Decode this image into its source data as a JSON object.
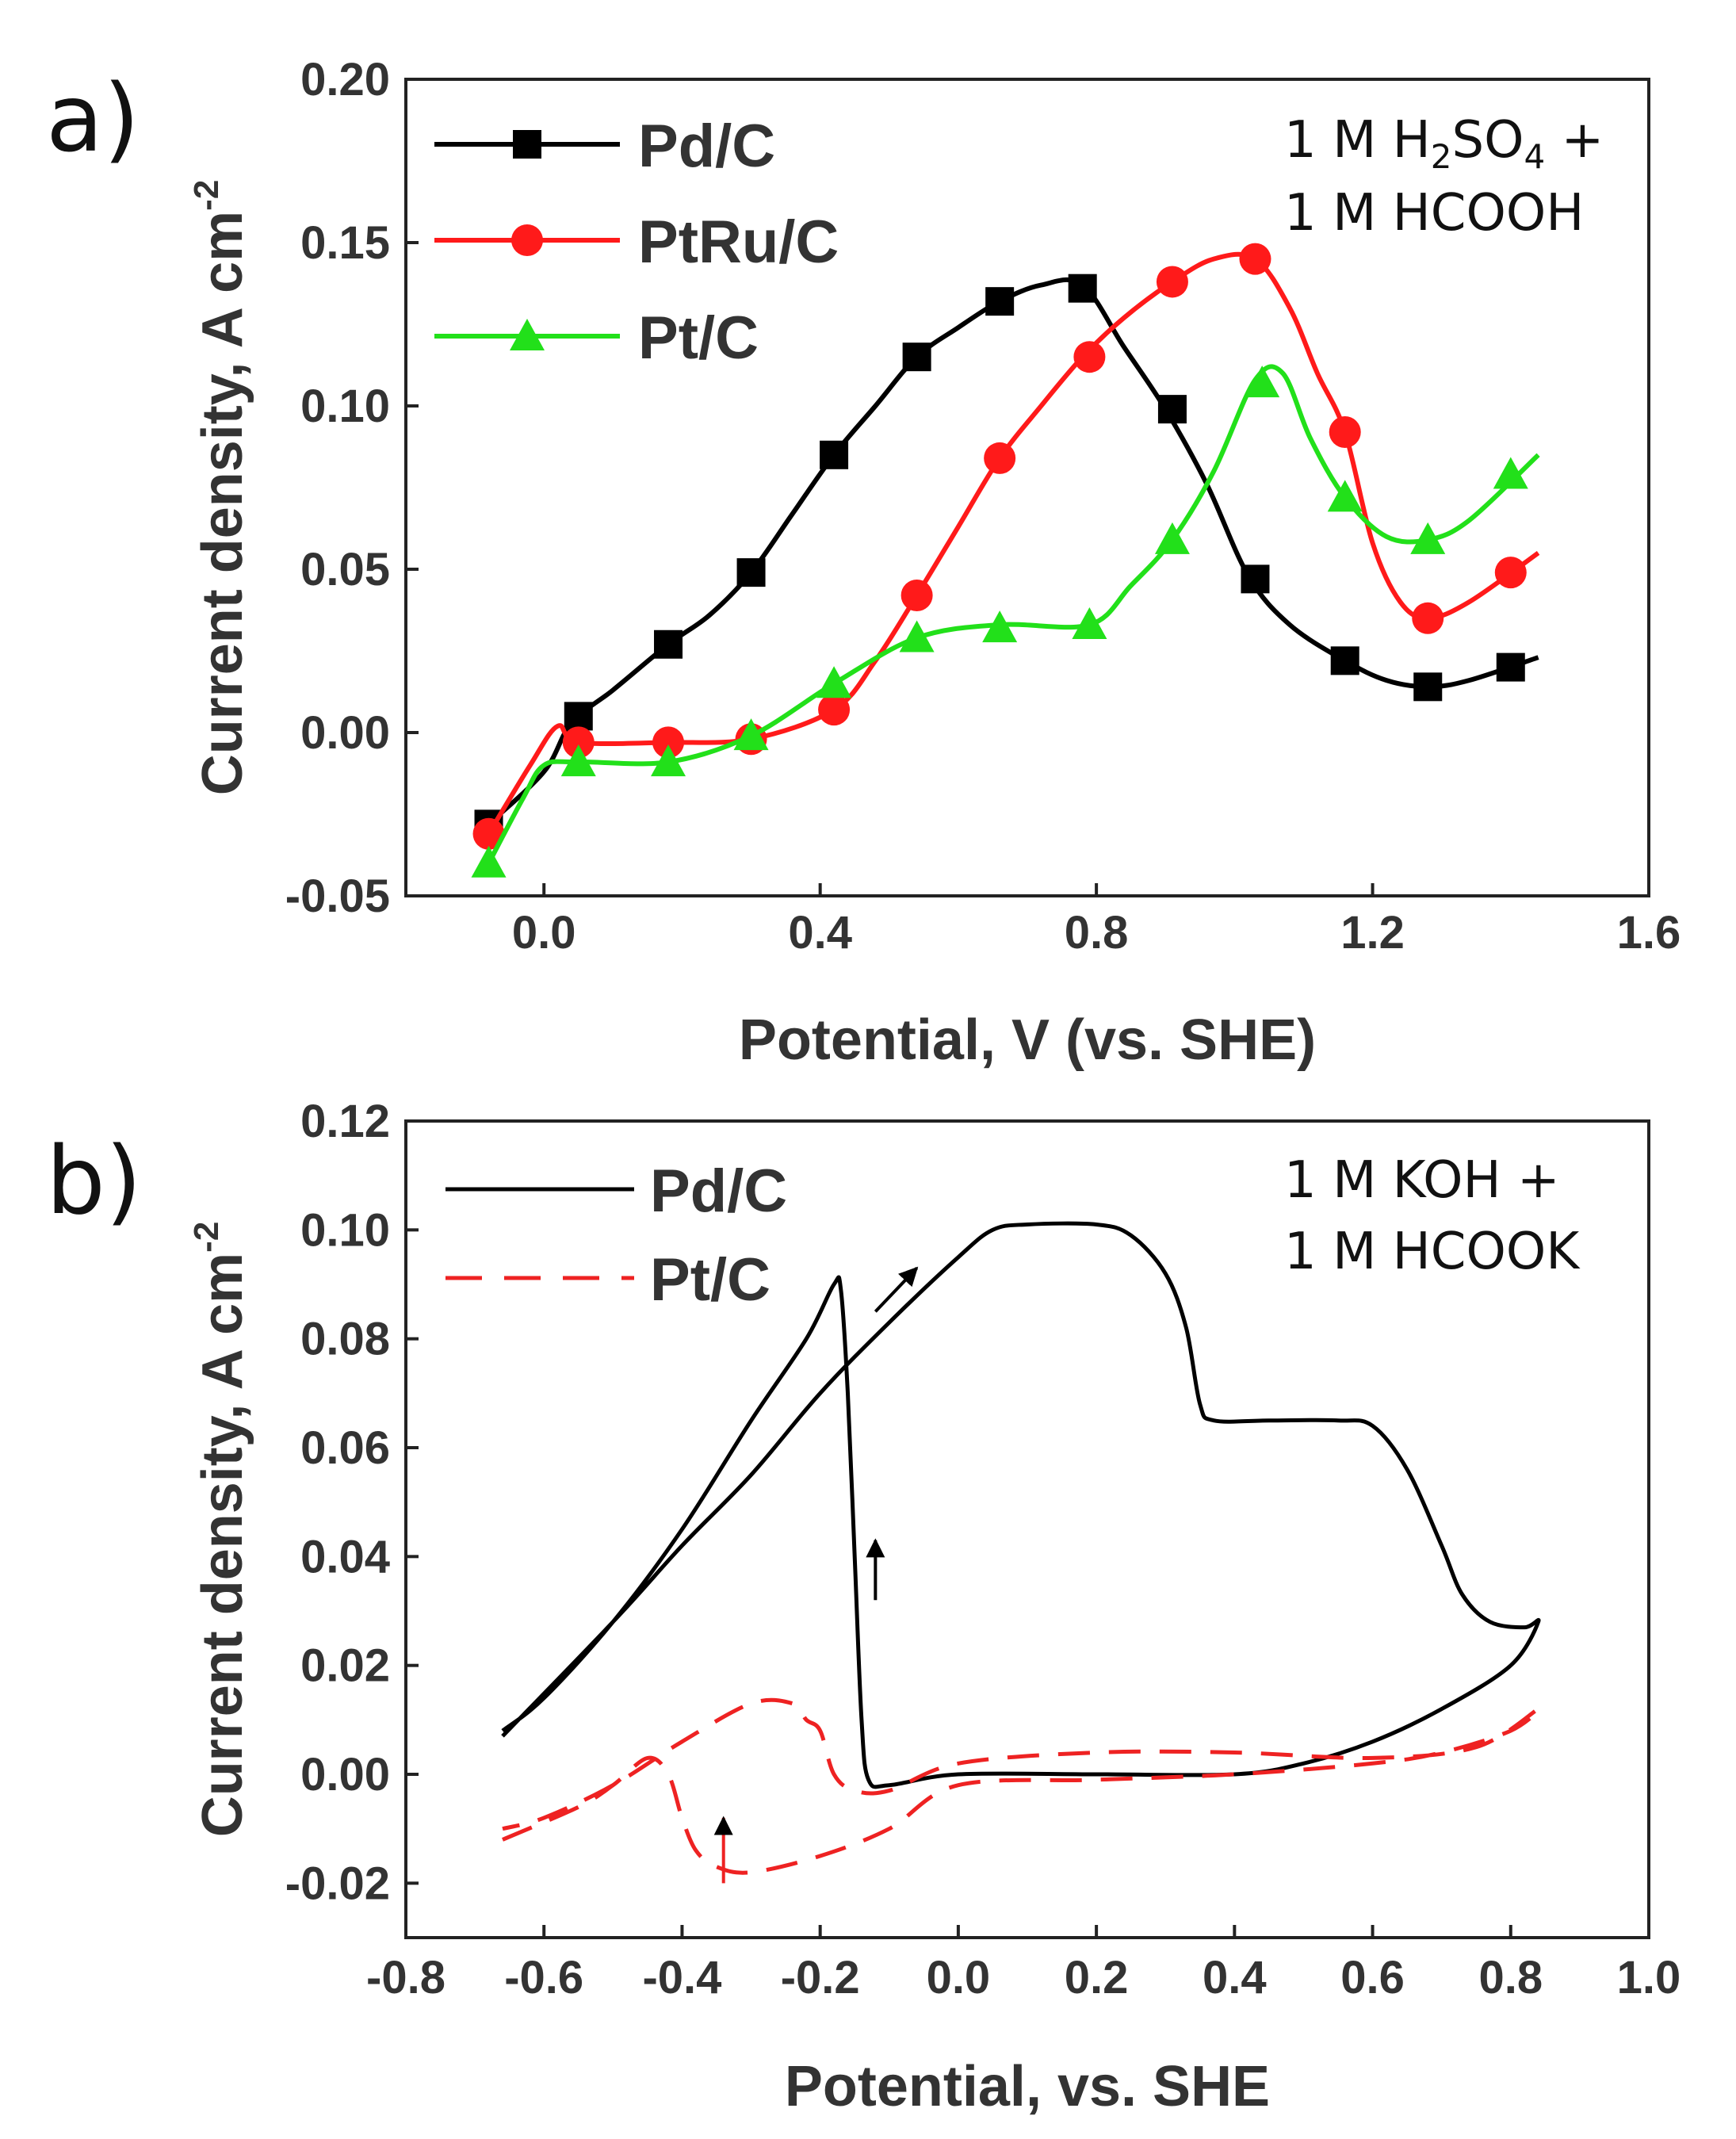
{
  "figure": {
    "panel_a_label": "a)",
    "panel_b_label": "b)"
  },
  "chart_data": [
    {
      "type": "line",
      "panel": "a",
      "title": "",
      "xlabel": "Potential, V (vs. SHE)",
      "ylabel": "Current density, A cm",
      "ylabel_sup": "-2",
      "xlim": [
        -0.2,
        1.6
      ],
      "ylim": [
        -0.05,
        0.2
      ],
      "xticks": [
        0.0,
        0.4,
        0.8,
        1.2,
        1.6
      ],
      "xtick_labels": [
        "0.0",
        "0.4",
        "0.8",
        "1.2",
        "1.6"
      ],
      "yticks": [
        -0.05,
        0.0,
        0.05,
        0.1,
        0.15,
        0.2
      ],
      "ytick_labels": [
        "-0.05",
        "0.00",
        "0.05",
        "0.10",
        "0.15",
        "0.20"
      ],
      "grid": false,
      "legend": "top-left",
      "annotation": {
        "line1_parts": [
          "1 M H",
          "2",
          "SO",
          "4",
          " +"
        ],
        "line2": "1 M HCOOH"
      },
      "series": [
        {
          "name": "Pd/C",
          "color": "#000000",
          "marker": "square",
          "curve": [
            [
              -0.08,
              -0.028
            ],
            [
              0.0,
              -0.012
            ],
            [
              0.04,
              0.003
            ],
            [
              0.1,
              0.013
            ],
            [
              0.18,
              0.027
            ],
            [
              0.24,
              0.036
            ],
            [
              0.3,
              0.049
            ],
            [
              0.36,
              0.067
            ],
            [
              0.42,
              0.085
            ],
            [
              0.48,
              0.1
            ],
            [
              0.54,
              0.115
            ],
            [
              0.6,
              0.124
            ],
            [
              0.66,
              0.132
            ],
            [
              0.72,
              0.137
            ],
            [
              0.78,
              0.137
            ],
            [
              0.84,
              0.118
            ],
            [
              0.9,
              0.099
            ],
            [
              0.96,
              0.076
            ],
            [
              1.02,
              0.048
            ],
            [
              1.08,
              0.033
            ],
            [
              1.16,
              0.022
            ],
            [
              1.22,
              0.016
            ],
            [
              1.28,
              0.014
            ],
            [
              1.34,
              0.016
            ],
            [
              1.44,
              0.023
            ]
          ],
          "markers": [
            [
              -0.08,
              -0.028
            ],
            [
              0.05,
              0.005
            ],
            [
              0.18,
              0.027
            ],
            [
              0.3,
              0.049
            ],
            [
              0.42,
              0.085
            ],
            [
              0.54,
              0.115
            ],
            [
              0.66,
              0.132
            ],
            [
              0.78,
              0.136
            ],
            [
              0.91,
              0.099
            ],
            [
              1.03,
              0.047
            ],
            [
              1.16,
              0.022
            ],
            [
              1.28,
              0.014
            ],
            [
              1.4,
              0.02
            ]
          ]
        },
        {
          "name": "PtRu/C",
          "color": "#ff1a1a",
          "marker": "circle",
          "curve": [
            [
              -0.08,
              -0.031
            ],
            [
              -0.02,
              -0.01
            ],
            [
              0.02,
              0.002
            ],
            [
              0.05,
              -0.003
            ],
            [
              0.18,
              -0.003
            ],
            [
              0.3,
              -0.002
            ],
            [
              0.42,
              0.007
            ],
            [
              0.48,
              0.022
            ],
            [
              0.54,
              0.042
            ],
            [
              0.6,
              0.063
            ],
            [
              0.66,
              0.084
            ],
            [
              0.72,
              0.1
            ],
            [
              0.78,
              0.115
            ],
            [
              0.84,
              0.127
            ],
            [
              0.91,
              0.138
            ],
            [
              0.97,
              0.145
            ],
            [
              1.03,
              0.145
            ],
            [
              1.08,
              0.13
            ],
            [
              1.12,
              0.11
            ],
            [
              1.16,
              0.092
            ],
            [
              1.2,
              0.058
            ],
            [
              1.24,
              0.04
            ],
            [
              1.28,
              0.035
            ],
            [
              1.34,
              0.04
            ],
            [
              1.44,
              0.055
            ]
          ],
          "markers": [
            [
              -0.08,
              -0.031
            ],
            [
              0.05,
              -0.003
            ],
            [
              0.18,
              -0.003
            ],
            [
              0.3,
              -0.002
            ],
            [
              0.42,
              0.007
            ],
            [
              0.54,
              0.042
            ],
            [
              0.66,
              0.084
            ],
            [
              0.79,
              0.115
            ],
            [
              0.91,
              0.138
            ],
            [
              1.03,
              0.145
            ],
            [
              1.16,
              0.092
            ],
            [
              1.28,
              0.035
            ],
            [
              1.4,
              0.049
            ]
          ]
        },
        {
          "name": "Pt/C",
          "color": "#22e01a",
          "marker": "triangle",
          "curve": [
            [
              -0.08,
              -0.04
            ],
            [
              -0.03,
              -0.02
            ],
            [
              0.0,
              -0.01
            ],
            [
              0.05,
              -0.009
            ],
            [
              0.18,
              -0.009
            ],
            [
              0.3,
              -0.001
            ],
            [
              0.42,
              0.015
            ],
            [
              0.54,
              0.029
            ],
            [
              0.66,
              0.033
            ],
            [
              0.79,
              0.033
            ],
            [
              0.85,
              0.045
            ],
            [
              0.91,
              0.059
            ],
            [
              0.97,
              0.08
            ],
            [
              1.03,
              0.108
            ],
            [
              1.07,
              0.11
            ],
            [
              1.11,
              0.09
            ],
            [
              1.16,
              0.072
            ],
            [
              1.22,
              0.06
            ],
            [
              1.28,
              0.059
            ],
            [
              1.34,
              0.065
            ],
            [
              1.44,
              0.085
            ]
          ],
          "markers": [
            [
              -0.08,
              -0.04
            ],
            [
              0.05,
              -0.009
            ],
            [
              0.18,
              -0.009
            ],
            [
              0.3,
              -0.001
            ],
            [
              0.42,
              0.015
            ],
            [
              0.54,
              0.029
            ],
            [
              0.66,
              0.032
            ],
            [
              0.79,
              0.033
            ],
            [
              0.91,
              0.059
            ],
            [
              1.04,
              0.107
            ],
            [
              1.16,
              0.072
            ],
            [
              1.28,
              0.059
            ],
            [
              1.4,
              0.079
            ]
          ]
        }
      ]
    },
    {
      "type": "line",
      "panel": "b",
      "title": "",
      "xlabel": "Potential, vs. SHE",
      "ylabel": "Current density, A cm",
      "ylabel_sup": "-2",
      "xlim": [
        -0.8,
        1.0
      ],
      "ylim": [
        -0.03,
        0.12
      ],
      "xticks": [
        -0.8,
        -0.6,
        -0.4,
        -0.2,
        0.0,
        0.2,
        0.4,
        0.6,
        0.8,
        1.0
      ],
      "xtick_labels": [
        "-0.8",
        "-0.6",
        "-0.4",
        "-0.2",
        "0.0",
        "0.2",
        "0.4",
        "0.6",
        "0.8",
        "1.0"
      ],
      "yticks": [
        -0.02,
        0.0,
        0.02,
        0.04,
        0.06,
        0.08,
        0.1,
        0.12
      ],
      "ytick_labels": [
        "-0.02",
        "0.00",
        "0.02",
        "0.04",
        "0.06",
        "0.08",
        "0.10",
        "0.12"
      ],
      "grid": false,
      "legend": "top-left",
      "annotation": {
        "line1": "1 M KOH +",
        "line2": "1 M HCOOK"
      },
      "series": [
        {
          "name": "Pd/C",
          "color": "#000000",
          "style": "solid",
          "curve": [
            [
              -0.66,
              0.007
            ],
            [
              -0.5,
              0.028
            ],
            [
              -0.4,
              0.042
            ],
            [
              -0.3,
              0.055
            ],
            [
              -0.2,
              0.07
            ],
            [
              -0.1,
              0.083
            ],
            [
              0.0,
              0.095
            ],
            [
              0.05,
              0.1
            ],
            [
              0.1,
              0.101
            ],
            [
              0.2,
              0.101
            ],
            [
              0.25,
              0.099
            ],
            [
              0.3,
              0.092
            ],
            [
              0.33,
              0.082
            ],
            [
              0.35,
              0.068
            ],
            [
              0.37,
              0.065
            ],
            [
              0.45,
              0.065
            ],
            [
              0.55,
              0.065
            ],
            [
              0.6,
              0.064
            ],
            [
              0.65,
              0.056
            ],
            [
              0.7,
              0.042
            ],
            [
              0.73,
              0.033
            ],
            [
              0.77,
              0.028
            ],
            [
              0.82,
              0.027
            ],
            [
              0.84,
              0.028
            ],
            [
              0.8,
              0.02
            ],
            [
              0.7,
              0.012
            ],
            [
              0.6,
              0.006
            ],
            [
              0.5,
              0.002
            ],
            [
              0.4,
              0.0
            ],
            [
              0.2,
              0.0
            ],
            [
              0.0,
              0.0
            ],
            [
              -0.1,
              -0.002
            ],
            [
              -0.13,
              -0.001
            ],
            [
              -0.14,
              0.01
            ],
            [
              -0.15,
              0.04
            ],
            [
              -0.16,
              0.07
            ],
            [
              -0.17,
              0.089
            ],
            [
              -0.18,
              0.09
            ],
            [
              -0.22,
              0.08
            ],
            [
              -0.3,
              0.065
            ],
            [
              -0.4,
              0.045
            ],
            [
              -0.5,
              0.028
            ],
            [
              -0.6,
              0.014
            ],
            [
              -0.66,
              0.008
            ]
          ],
          "arrows": [
            {
              "x1": -0.12,
              "y1": 0.085,
              "x2": -0.06,
              "y2": 0.093
            },
            {
              "x1": -0.12,
              "y1": 0.032,
              "x2": -0.12,
              "y2": 0.043
            }
          ]
        },
        {
          "name": "Pt/C",
          "color": "#ee2222",
          "style": "dashed",
          "curve": [
            [
              -0.66,
              -0.012
            ],
            [
              -0.55,
              -0.006
            ],
            [
              -0.5,
              -0.002
            ],
            [
              -0.45,
              0.003
            ],
            [
              -0.42,
              0.0
            ],
            [
              -0.4,
              -0.008
            ],
            [
              -0.38,
              -0.014
            ],
            [
              -0.35,
              -0.017
            ],
            [
              -0.3,
              -0.018
            ],
            [
              -0.2,
              -0.015
            ],
            [
              -0.1,
              -0.01
            ],
            [
              0.0,
              -0.002
            ],
            [
              0.2,
              -0.001
            ],
            [
              0.4,
              0.0
            ],
            [
              0.6,
              0.002
            ],
            [
              0.7,
              0.004
            ],
            [
              0.8,
              0.008
            ],
            [
              0.84,
              0.012
            ],
            [
              0.75,
              0.005
            ],
            [
              0.6,
              0.003
            ],
            [
              0.4,
              0.004
            ],
            [
              0.2,
              0.004
            ],
            [
              0.0,
              0.002
            ],
            [
              -0.1,
              -0.003
            ],
            [
              -0.15,
              -0.003
            ],
            [
              -0.18,
              0.0
            ],
            [
              -0.2,
              0.008
            ],
            [
              -0.22,
              0.01
            ],
            [
              -0.24,
              0.013
            ],
            [
              -0.3,
              0.013
            ],
            [
              -0.4,
              0.006
            ],
            [
              -0.5,
              -0.002
            ],
            [
              -0.6,
              -0.008
            ],
            [
              -0.66,
              -0.01
            ]
          ],
          "arrows": [
            {
              "x1": -0.34,
              "y1": -0.02,
              "x2": -0.34,
              "y2": -0.008
            }
          ]
        }
      ]
    }
  ]
}
